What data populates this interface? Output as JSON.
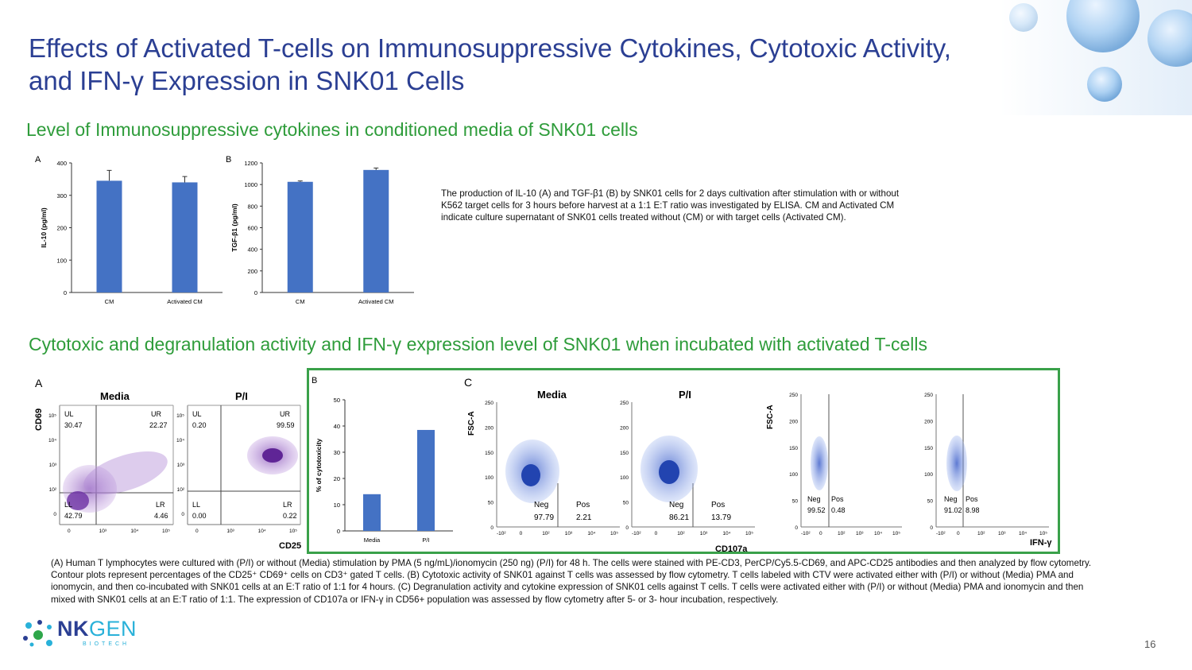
{
  "slide": {
    "title": "Effects of Activated T-cells on Immunosuppressive Cytokines, Cytotoxic Activity, and IFN-γ Expression in SNK01 Cells",
    "section1_heading": "Level of Immunosuppressive cytokines in conditioned media of SNK01 cells",
    "section2_heading": "Cytotoxic and degranulation activity and IFN-γ expression level of SNK01 when incubated with activated T-cells",
    "caption1": "The production of IL-10 (A) and TGF-β1 (B) by SNK01 cells for 2 days cultivation after stimulation with or without K562 target cells for 3 hours before harvest at a 1:1 E:T ratio was investigated by ELISA. CM and Activated CM indicate culture supernatant of SNK01 cells treated without (CM) or with target cells (Activated CM).",
    "caption2": "(A) Human T lymphocytes were cultured with (P/I) or without (Media) stimulation by PMA (5 ng/mL)/ionomycin (250 ng) (P/I) for 48 h. The cells were stained with PE-CD3, PerCP/Cy5.5-CD69, and APC-CD25 antibodies and then analyzed by flow cytometry. Contour plots represent percentages of the CD25⁺ CD69⁺ cells on CD3⁺ gated T cells. (B) Cytotoxic activity of SNK01 against T cells was assessed by flow cytometry. T cells labeled with CTV were activated either with (P/I) or without (Media) PMA and ionomycin, and then co-incubated with SNK01 cells at an E:T ratio of 1:1 for 4 hours. (C) Degranulation activity and cytokine expression of SNK01 cells against T cells. T cells were activated either with (P/I) or without (Media) PMA and ionomycin and then mixed with SNK01 cells at an E:T ratio of 1:1. The expression of CD107a or IFN-γ in CD56+ population was assessed by flow cytometry after 5- or 3- hour incubation, respectively.",
    "page_number": "16",
    "logo": {
      "word_nk": "NK",
      "word_gen": "GEN",
      "sub": "BIOTECH"
    }
  },
  "colors": {
    "title": "#2b3f93",
    "heading": "#2e9c3a",
    "bar": "#4472c4",
    "frame": "#3aa14a",
    "flow_purple": "#8a55b8",
    "flow_blue": "#4a6fd6"
  },
  "chart_data": [
    {
      "id": "A-top",
      "type": "bar",
      "panel_label": "A",
      "categories": [
        "CM",
        "Activated CM"
      ],
      "values": [
        345,
        340
      ],
      "errors": [
        32,
        18
      ],
      "ylabel": "IL-10 (pg/ml)",
      "ylim": [
        0,
        400
      ],
      "yticks": [
        0,
        100,
        200,
        300,
        400
      ]
    },
    {
      "id": "B-top",
      "type": "bar",
      "panel_label": "B",
      "categories": [
        "CM",
        "Activated CM"
      ],
      "values": [
        1025,
        1135
      ],
      "errors": [
        8,
        18
      ],
      "ylabel": "TGF-β1 (pg/ml)",
      "ylim": [
        0,
        1200
      ],
      "yticks": [
        0,
        200,
        400,
        600,
        800,
        1000,
        1200
      ]
    },
    {
      "id": "B-bottom",
      "type": "bar",
      "panel_label": "B",
      "categories": [
        "Media",
        "P/I"
      ],
      "values": [
        14,
        38.5
      ],
      "ylabel": "% of cytotoxicity",
      "ylim": [
        0,
        50
      ],
      "yticks": [
        0,
        10,
        20,
        30,
        40,
        50
      ]
    }
  ],
  "flow_A": {
    "panel_label": "A",
    "y_axis": "CD69",
    "x_axis": "CD25",
    "plots": [
      {
        "title": "Media",
        "UL": "30.47",
        "UR": "22.27",
        "LL": "42.79",
        "LR": "4.46",
        "q_ul": "UL",
        "q_ur": "UR",
        "q_ll": "LL",
        "q_lr": "LR"
      },
      {
        "title": "P/I",
        "UL": "0.20",
        "UR": "99.59",
        "LL": "0.00",
        "LR": "0.22",
        "q_ul": "UL",
        "q_ur": "UR",
        "q_ll": "LL",
        "q_lr": "LR"
      }
    ]
  },
  "flow_C": {
    "panel_label": "C",
    "y_axis": "FSC-A",
    "cd107a": {
      "x_axis": "CD107a",
      "plots": [
        {
          "title": "Media",
          "neg_label": "Neg",
          "pos_label": "Pos",
          "neg": "97.79",
          "pos": "2.21"
        },
        {
          "title": "P/I",
          "neg_label": "Neg",
          "pos_label": "Pos",
          "neg": "86.21",
          "pos": "13.79"
        }
      ]
    },
    "ifng": {
      "x_axis": "IFN-γ",
      "plots": [
        {
          "neg_label": "Neg",
          "pos_label": "Pos",
          "neg": "99.52",
          "pos": "0.48"
        },
        {
          "neg_label": "Neg",
          "pos_label": "Pos",
          "neg": "91.02",
          "pos": "8.98"
        }
      ]
    },
    "yticks_fsc": [
      "0",
      "50",
      "100",
      "150",
      "200",
      "250"
    ],
    "xticks_log": [
      "-10²",
      "0",
      "10²",
      "10³",
      "10⁴",
      "10⁵"
    ],
    "xticks_cd25": [
      "0",
      "10³",
      "10⁴",
      "10⁵"
    ],
    "yticks_cd69": [
      "10⁵",
      "10⁴",
      "10³",
      "10²",
      "0"
    ]
  }
}
